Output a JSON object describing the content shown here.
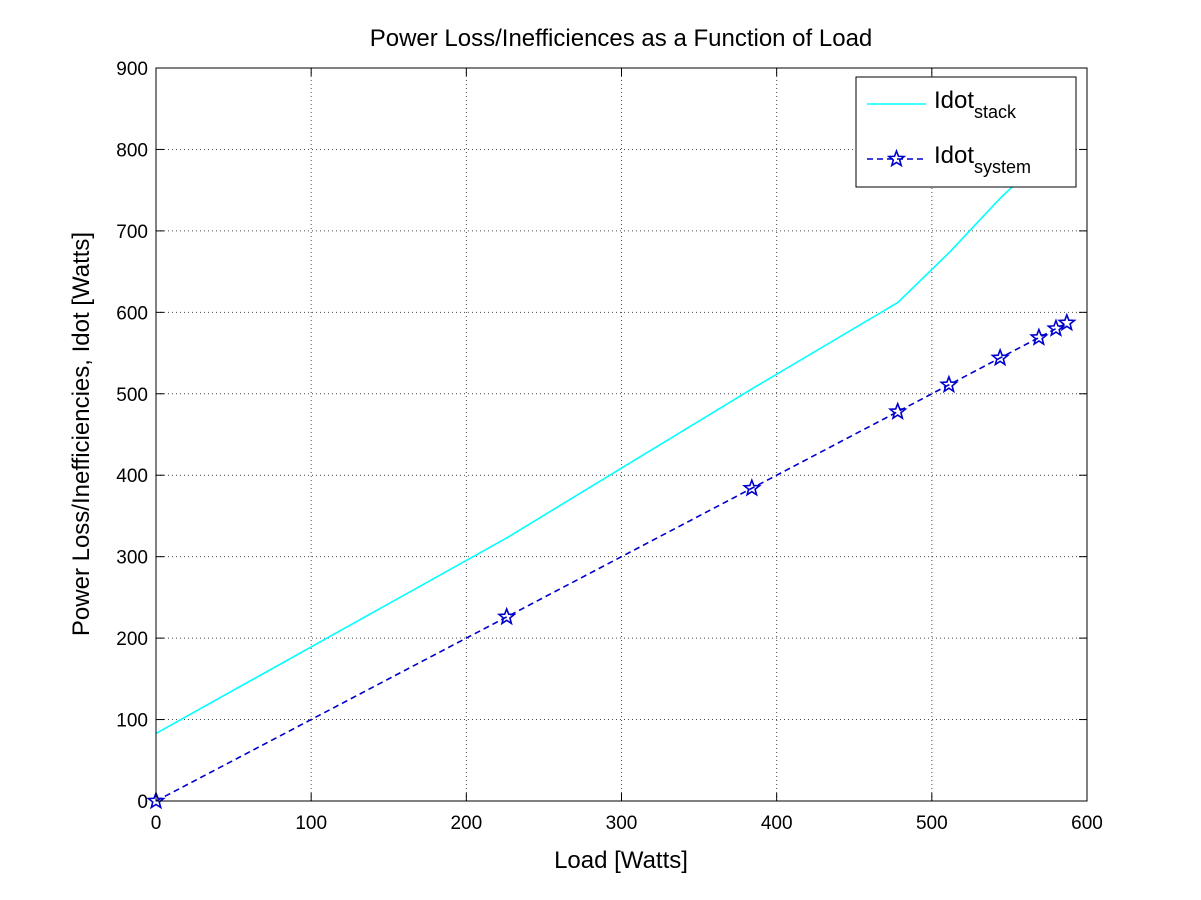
{
  "chart_data": {
    "type": "line",
    "title": "Power Loss/Inefficiences as a Function of Load",
    "xlabel": "Load [Watts]",
    "ylabel": "Power Loss/Inefficiencies, Idot [Watts]",
    "xlim": [
      0,
      600
    ],
    "ylim": [
      0,
      900
    ],
    "xticks": [
      0,
      100,
      200,
      300,
      400,
      500,
      600
    ],
    "yticks": [
      0,
      100,
      200,
      300,
      400,
      500,
      600,
      700,
      800,
      900
    ],
    "grid": true,
    "legend_position": "top-right",
    "series": [
      {
        "name_base": "Idot",
        "name_sub": "stack",
        "color": "#00ffff",
        "style": "solid",
        "marker": "none",
        "x": [
          0,
          226,
          384,
          478,
          511,
          544,
          569,
          580,
          587
        ],
        "y": [
          83,
          323,
          506,
          612,
          673,
          740,
          785,
          805,
          820
        ]
      },
      {
        "name_base": "Idot",
        "name_sub": "system",
        "color": "#0000cc",
        "style": "dashed",
        "marker": "star",
        "x": [
          0,
          226,
          384,
          478,
          511,
          544,
          569,
          580,
          587
        ],
        "y": [
          0,
          226,
          384,
          478,
          511,
          544,
          569,
          580,
          587
        ]
      }
    ]
  }
}
